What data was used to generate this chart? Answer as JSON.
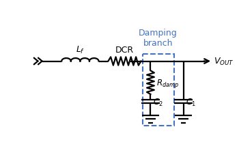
{
  "bg_color": "#ffffff",
  "line_color": "#000000",
  "damp_box_color": "#4472c4",
  "title": "Damping\nbranch",
  "title_color": "#4472c4",
  "vout_label": "$V_{OUT}$",
  "lf_label": "$L_f$",
  "dcr_label": "DCR",
  "rdamp_label": "$R_{damp}$",
  "c2_label": "$C_2$",
  "c1_label": "$C_1$",
  "figsize": [
    3.5,
    2.28
  ],
  "dpi": 100
}
